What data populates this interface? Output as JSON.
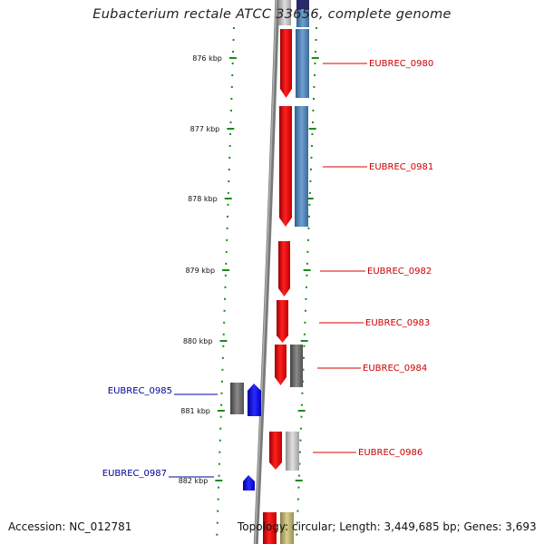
{
  "title": "Eubacterium rectale ATCC 33656, complete genome",
  "footer": {
    "accession": "Accession: NC_012781",
    "summary": "Topology: circular; Length: 3,449,685 bp; Genes: 3,693"
  },
  "colors": {
    "forward_gene": "#ee1111",
    "reverse_gene": "#1010ee",
    "rna_blue": "#4682b4",
    "gray_feature": "#707070",
    "light_gray_feature": "#b8b8b8",
    "olive_feature": "#b5aa6a",
    "tick_green": "#1a8a1a",
    "backbone": "#808080",
    "forward_label": "#cc0000",
    "reverse_label": "#000099"
  },
  "ticks": [
    {
      "label": "876 kbp"
    },
    {
      "label": "877 kbp"
    },
    {
      "label": "878 kbp"
    },
    {
      "label": "879 kbp"
    },
    {
      "label": "880 kbp"
    },
    {
      "label": "881 kbp"
    },
    {
      "label": "882 kbp"
    }
  ],
  "genes": [
    {
      "id": "EUBREC_0980",
      "strand": "forward"
    },
    {
      "id": "EUBREC_0981",
      "strand": "forward"
    },
    {
      "id": "EUBREC_0982",
      "strand": "forward"
    },
    {
      "id": "EUBREC_0983",
      "strand": "forward"
    },
    {
      "id": "EUBREC_0984",
      "strand": "forward"
    },
    {
      "id": "EUBREC_0985",
      "strand": "reverse"
    },
    {
      "id": "EUBREC_0986",
      "strand": "forward"
    },
    {
      "id": "EUBREC_0987",
      "strand": "reverse"
    }
  ]
}
